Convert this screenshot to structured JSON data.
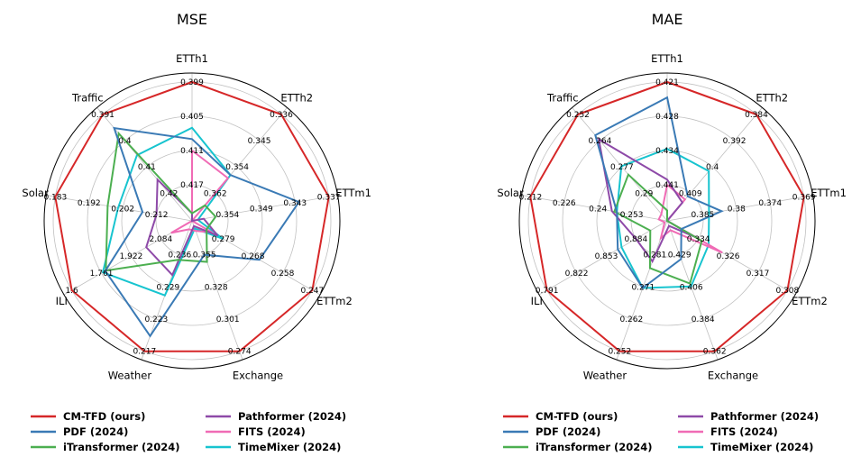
{
  "chart_data": [
    {
      "type": "radar",
      "title": "MSE",
      "axes": [
        "ETTh1",
        "ETTh2",
        "ETTm1",
        "ETTm2",
        "Exchange",
        "Weather",
        "ILI",
        "Solar",
        "Traffic"
      ],
      "axis_tick_labels": [
        [
          "0.399",
          "0.405",
          "0.411",
          "0.417"
        ],
        [
          "0.336",
          "0.345",
          "0.354",
          "0.362"
        ],
        [
          "0.337",
          "0.343",
          "0.349",
          "0.354"
        ],
        [
          "0.247",
          "0.258",
          "0.268",
          "0.279"
        ],
        [
          "0.274",
          "0.301",
          "0.328",
          "0.355"
        ],
        [
          "0.217",
          "0.223",
          "0.229",
          "0.236"
        ],
        [
          "1.6",
          "1.761",
          "1.922",
          "2.084"
        ],
        [
          "0.183",
          "0.192",
          "0.202",
          "0.212"
        ],
        [
          "0.391",
          "0.4",
          "0.41",
          "0.42"
        ]
      ],
      "series": [
        {
          "name": "CM-TFD (ours)",
          "values": [
            0.399,
            0.336,
            0.337,
            0.247,
            0.274,
            0.217,
            1.6,
            0.183,
            0.391
          ]
        },
        {
          "name": "PDF (2024)",
          "values": [
            0.409,
            0.356,
            0.342,
            0.266,
            0.355,
            0.22,
            1.782,
            0.208,
            0.396
          ]
        },
        {
          "name": "iTransformer (2024)",
          "values": [
            0.422,
            0.366,
            0.356,
            0.285,
            0.349,
            0.235,
            1.785,
            0.198,
            0.398
          ]
        },
        {
          "name": "Pathformer (2024)",
          "values": [
            0.422,
            0.375,
            0.358,
            0.281,
            0.379,
            0.232,
            2.005,
            0.212,
            0.415
          ]
        },
        {
          "name": "FITS (2024)",
          "values": [
            0.411,
            0.357,
            0.36,
            0.283,
            0.375,
            0.241,
            2.14,
            0.223,
            0.433
          ]
        },
        {
          "name": "TimeMixer (2024)",
          "values": [
            0.407,
            0.356,
            0.359,
            0.279,
            0.377,
            0.228,
            1.769,
            0.201,
            0.406
          ]
        }
      ]
    },
    {
      "type": "radar",
      "title": "MAE",
      "axes": [
        "ETTh1",
        "ETTh2",
        "ETTm1",
        "ETTm2",
        "Exchange",
        "Weather",
        "ILI",
        "Solar",
        "Traffic"
      ],
      "axis_tick_labels": [
        [
          "0.421",
          "0.428",
          "0.434",
          "0.441"
        ],
        [
          "0.384",
          "0.392",
          "0.4",
          "0.409"
        ],
        [
          "0.369",
          "0.374",
          "0.38",
          "0.385"
        ],
        [
          "0.308",
          "0.317",
          "0.326",
          "0.334"
        ],
        [
          "0.362",
          "0.384",
          "0.406",
          "0.429"
        ],
        [
          "0.252",
          "0.262",
          "0.271",
          "0.281"
        ],
        [
          "0.791",
          "0.822",
          "0.853",
          "0.884"
        ],
        [
          "0.212",
          "0.226",
          "0.24",
          "0.253"
        ],
        [
          "0.252",
          "0.264",
          "0.277",
          "0.29"
        ]
      ],
      "series": [
        {
          "name": "CM-TFD (ours)",
          "values": [
            0.421,
            0.384,
            0.369,
            0.308,
            0.362,
            0.252,
            0.791,
            0.212,
            0.252
          ]
        },
        {
          "name": "PDF (2024)",
          "values": [
            0.424,
            0.41,
            0.382,
            0.339,
            0.426,
            0.271,
            0.865,
            0.247,
            0.262
          ]
        },
        {
          "name": "iTransformer (2024)",
          "values": [
            0.446,
            0.418,
            0.393,
            0.333,
            0.409,
            0.277,
            0.899,
            0.246,
            0.281
          ]
        },
        {
          "name": "Pathformer (2024)",
          "values": [
            0.44,
            0.412,
            0.391,
            0.335,
            0.449,
            0.279,
            0.884,
            0.245,
            0.264
          ]
        },
        {
          "name": "FITS (2024)",
          "values": [
            0.441,
            0.411,
            0.394,
            0.327,
            0.446,
            0.286,
            0.914,
            0.264,
            0.3
          ]
        },
        {
          "name": "TimeMixer (2024)",
          "values": [
            0.434,
            0.402,
            0.384,
            0.331,
            0.407,
            0.271,
            0.869,
            0.247,
            0.277
          ]
        }
      ]
    }
  ],
  "colors": [
    "#d62728",
    "#3a7ab5",
    "#4caf50",
    "#8e4aa8",
    "#f06bb5",
    "#17c4cf"
  ],
  "legend": {
    "placement": "bottom",
    "entries": [
      "CM-TFD (ours)",
      "PDF (2024)",
      "iTransformer (2024)",
      "Pathformer (2024)",
      "FITS (2024)",
      "TimeMixer (2024)"
    ]
  }
}
